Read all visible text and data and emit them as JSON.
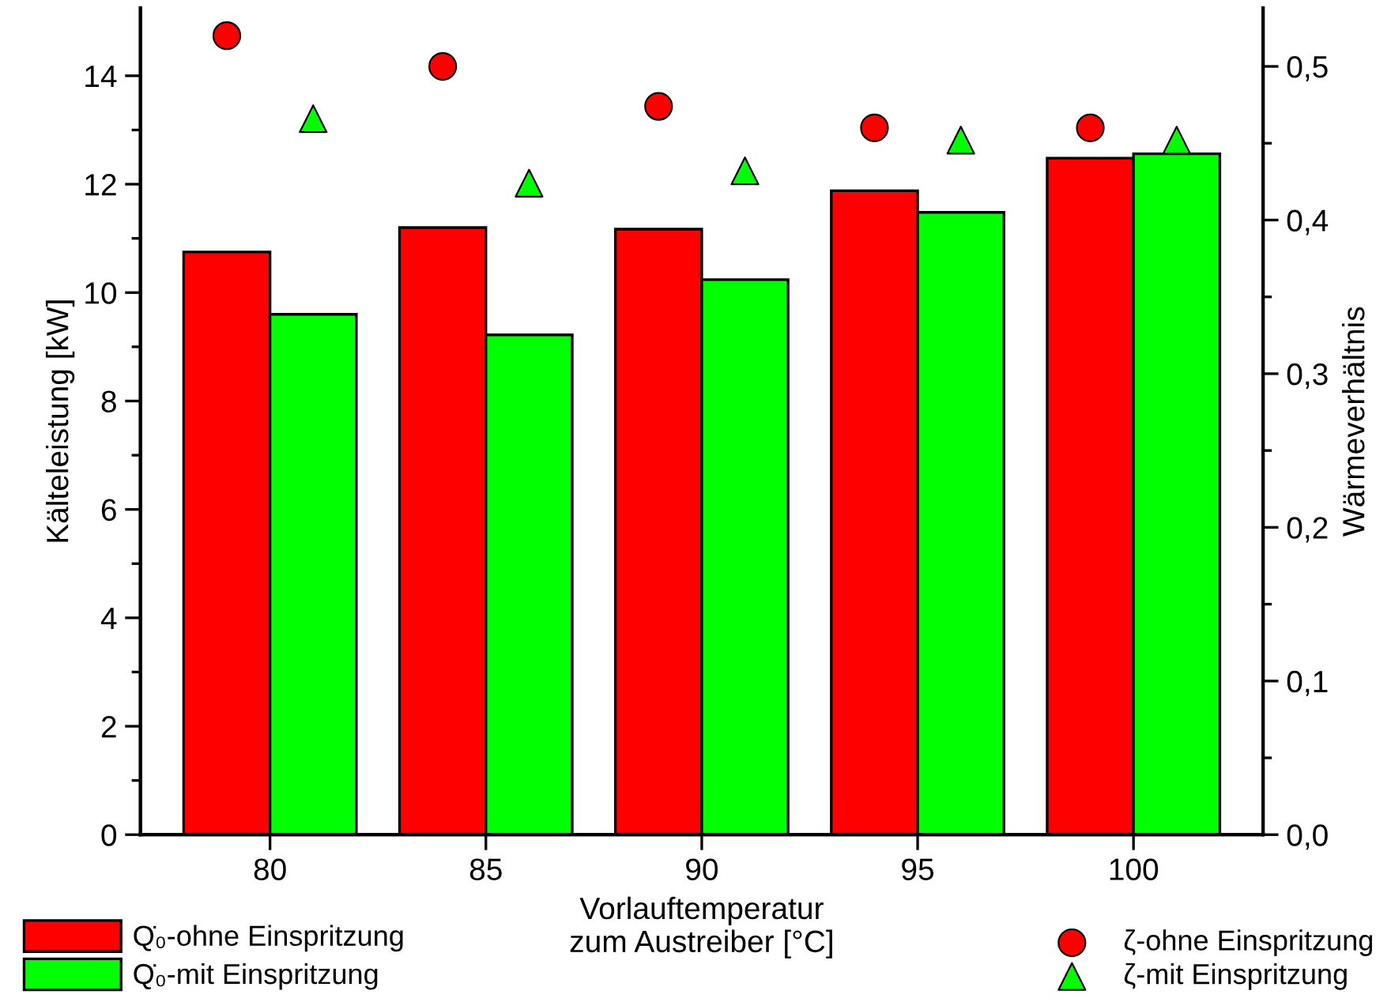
{
  "chart_data": {
    "type": "bar",
    "xlabel": "Vorlauftemperatur\nzum Austreiber [°C]",
    "ylabel": "Kälteleistung [kW]",
    "y2label": "Wärmeverhältnis",
    "xlim": [
      77,
      103
    ],
    "xticks": [
      80,
      85,
      90,
      95,
      100
    ],
    "ylim": [
      0,
      15.25
    ],
    "yticks": [
      0,
      2,
      4,
      6,
      8,
      10,
      12,
      14
    ],
    "y2lim": [
      0,
      0.538
    ],
    "y2ticks": [
      {
        "value": 0,
        "label": "0,0"
      },
      {
        "value": 0.1,
        "label": "0,1"
      },
      {
        "value": 0.2,
        "label": "0,2"
      },
      {
        "value": 0.3,
        "label": "0,3"
      },
      {
        "value": 0.4,
        "label": "0,4"
      },
      {
        "value": 0.5,
        "label": "0,5"
      }
    ],
    "legend": "bottom",
    "grid": false,
    "series": [
      {
        "name": "Q̇₀-ohne Einspritzung",
        "color": "#ff0000",
        "x": [
          79,
          84,
          89,
          94,
          99
        ],
        "values": [
          10.75,
          11.2,
          11.17,
          11.88,
          12.48
        ]
      },
      {
        "name": "Q̇₀-mit Einspritzung",
        "color": "#00ff00",
        "x": [
          81,
          86,
          91,
          96,
          101
        ],
        "values": [
          9.6,
          9.22,
          10.24,
          11.48,
          12.56
        ]
      },
      {
        "name": "ζ-ohne Einspritzung",
        "type": "scatter",
        "axis": "y2",
        "marker": "circle",
        "color": "#ff0000",
        "x": [
          79,
          84,
          89,
          94,
          99
        ],
        "values": [
          0.52,
          0.5,
          0.474,
          0.46,
          0.46
        ]
      },
      {
        "name": "ζ-mit Einspritzung",
        "type": "scatter",
        "axis": "y2",
        "marker": "triangle",
        "color": "#00ff00",
        "x": [
          81,
          86,
          91,
          96,
          101
        ],
        "values": [
          0.466,
          0.424,
          0.432,
          0.452,
          0.452
        ]
      }
    ]
  }
}
